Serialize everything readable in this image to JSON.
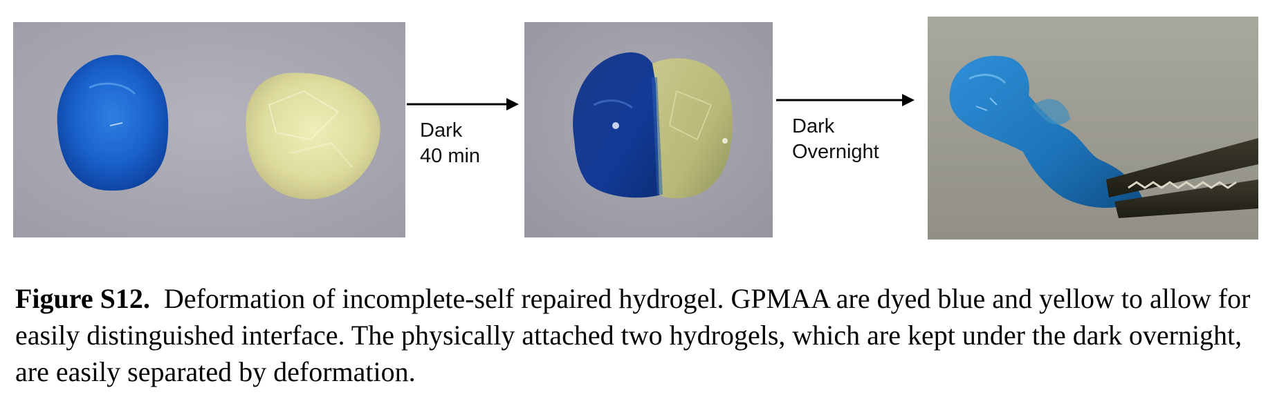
{
  "figure": {
    "panels": [
      {
        "content": "blue and yellow hydrogel pieces side by side"
      },
      {
        "content": "blue and yellow hydrogels attached"
      },
      {
        "content": "attached hydrogel held by tweezers and deformed"
      }
    ],
    "steps": [
      {
        "line1": "Dark",
        "line2": "40 min"
      },
      {
        "line1": "Dark",
        "line2": "Overnight"
      }
    ],
    "colors": {
      "gel_blue": "#1560c8",
      "gel_yellow": "#e4e0a2",
      "background_gray": "#a9a8b3"
    }
  },
  "caption": {
    "label": "Figure S12.",
    "text": "Deformation of incomplete-self repaired hydrogel.  GPMAA are dyed blue and yellow to allow for easily distinguished interface. The physically attached two hydrogels, which are kept under the dark overnight, are easily separated by deformation."
  }
}
